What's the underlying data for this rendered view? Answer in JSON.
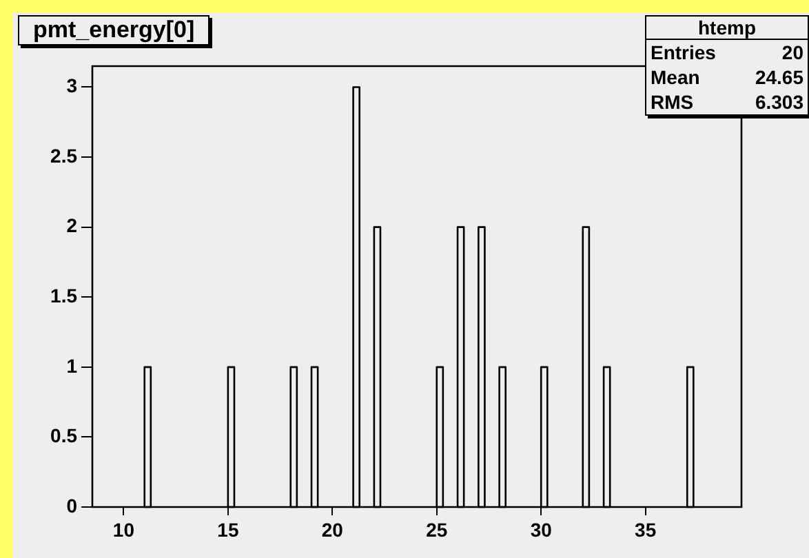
{
  "chart_data": {
    "type": "histogram",
    "title": "pmt_energy[0]",
    "bins": [
      11,
      11.3,
      15,
      15.3,
      18,
      18.3,
      19,
      19.3,
      21,
      21.3,
      22,
      22.3,
      25,
      25.3,
      26,
      26.3,
      27,
      27.3,
      28,
      28.3,
      30,
      30.3,
      32,
      32.3,
      33,
      33.3,
      37,
      37.3
    ],
    "values": [
      1,
      0,
      1,
      0,
      1,
      0,
      1,
      0,
      3,
      0,
      2,
      0,
      1,
      0,
      2,
      0,
      2,
      0,
      1,
      0,
      1,
      0,
      2,
      0,
      1,
      0,
      1
    ],
    "color": "#000000",
    "xlim": [
      8.5,
      39.6
    ],
    "xticks": [
      10,
      15,
      20,
      25,
      30,
      35
    ],
    "ylim": [
      0,
      3.15
    ],
    "yticks": [
      0,
      0.5,
      1,
      1.5,
      2,
      2.5,
      3
    ],
    "legend": false,
    "annotations": [
      "htemp",
      "Entries",
      "20",
      "Mean",
      "24.65",
      "RMS",
      "6.303"
    ]
  }
}
